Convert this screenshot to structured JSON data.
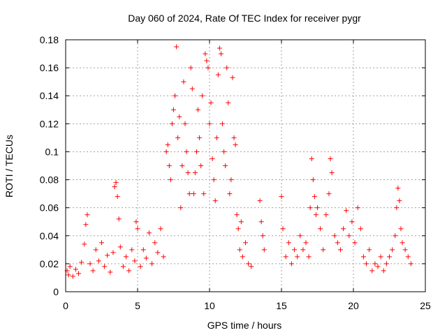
{
  "chart_data": {
    "type": "scatter",
    "title": "Day 060 of 2024, Rate Of TEC Index for receiver pygr",
    "xlabel": "GPS time / hours",
    "ylabel": "ROTI / TECUs",
    "xlim": [
      0,
      25
    ],
    "ylim": [
      0,
      0.18
    ],
    "xticks": [
      0,
      5,
      10,
      15,
      20,
      25
    ],
    "yticks": [
      0,
      0.02,
      0.04,
      0.06,
      0.08,
      0.1,
      0.12,
      0.14,
      0.16,
      0.18
    ],
    "xtick_labels": [
      "0",
      "5",
      "10",
      "15",
      "20",
      "25"
    ],
    "ytick_labels": [
      "0",
      "0.02",
      "0.04",
      "0.06",
      "0.08",
      "0.1",
      "0.12",
      "0.14",
      "0.16",
      "0.18"
    ],
    "grid": true,
    "marker": "+",
    "color": "#ff0000",
    "series": [
      {
        "x": [
          0.1,
          0.2,
          0.3,
          0.5,
          0.7,
          0.9,
          1.1,
          1.3,
          1.4,
          1.5,
          1.7,
          1.9,
          2.1,
          2.3,
          2.5,
          2.7,
          2.9,
          3.1,
          3.3,
          3.4,
          3.5,
          3.6,
          3.7,
          3.8,
          4.0,
          4.2,
          4.4,
          4.6,
          4.8,
          4.9,
          5.0,
          5.2,
          5.4,
          5.6,
          5.8,
          6.0,
          6.2,
          6.4,
          6.6,
          6.8,
          7.0,
          7.1,
          7.2,
          7.3,
          7.4,
          7.5,
          7.6,
          7.7,
          7.8,
          7.9,
          8.0,
          8.1,
          8.2,
          8.3,
          8.4,
          8.5,
          8.6,
          8.7,
          8.8,
          8.9,
          9.0,
          9.1,
          9.2,
          9.3,
          9.4,
          9.5,
          9.6,
          9.7,
          9.8,
          9.9,
          10.0,
          10.1,
          10.2,
          10.3,
          10.4,
          10.5,
          10.6,
          10.7,
          10.8,
          10.9,
          11.0,
          11.1,
          11.2,
          11.3,
          11.4,
          11.5,
          11.6,
          11.7,
          11.8,
          11.9,
          12.0,
          12.1,
          12.2,
          12.3,
          12.5,
          12.7,
          12.9,
          13.5,
          13.6,
          13.7,
          13.8,
          15.0,
          15.1,
          15.3,
          15.5,
          15.7,
          15.9,
          16.1,
          16.3,
          16.5,
          16.7,
          16.9,
          17.0,
          17.1,
          17.2,
          17.3,
          17.4,
          17.5,
          17.7,
          17.9,
          18.1,
          18.3,
          18.4,
          18.5,
          18.7,
          18.9,
          19.1,
          19.3,
          19.5,
          19.7,
          19.9,
          20.1,
          20.3,
          20.5,
          20.7,
          20.9,
          21.1,
          21.3,
          21.5,
          21.7,
          21.9,
          22.1,
          22.3,
          22.5,
          22.7,
          22.9,
          23.0,
          23.1,
          23.2,
          23.3,
          23.4,
          23.6,
          23.8,
          24.0
        ],
        "y": [
          0.015,
          0.012,
          0.018,
          0.011,
          0.016,
          0.013,
          0.021,
          0.034,
          0.048,
          0.055,
          0.02,
          0.015,
          0.03,
          0.022,
          0.035,
          0.018,
          0.026,
          0.014,
          0.028,
          0.075,
          0.078,
          0.068,
          0.052,
          0.032,
          0.018,
          0.025,
          0.015,
          0.03,
          0.022,
          0.05,
          0.045,
          0.018,
          0.03,
          0.024,
          0.042,
          0.02,
          0.035,
          0.028,
          0.045,
          0.025,
          0.1,
          0.105,
          0.09,
          0.08,
          0.12,
          0.13,
          0.14,
          0.175,
          0.11,
          0.125,
          0.06,
          0.09,
          0.15,
          0.12,
          0.1,
          0.085,
          0.07,
          0.16,
          0.145,
          0.07,
          0.085,
          0.1,
          0.13,
          0.11,
          0.09,
          0.14,
          0.07,
          0.17,
          0.165,
          0.16,
          0.12,
          0.135,
          0.095,
          0.08,
          0.065,
          0.11,
          0.155,
          0.174,
          0.17,
          0.12,
          0.1,
          0.09,
          0.16,
          0.135,
          0.07,
          0.08,
          0.153,
          0.11,
          0.105,
          0.055,
          0.045,
          0.03,
          0.05,
          0.025,
          0.035,
          0.02,
          0.018,
          0.065,
          0.05,
          0.04,
          0.03,
          0.068,
          0.045,
          0.025,
          0.035,
          0.02,
          0.03,
          0.025,
          0.04,
          0.03,
          0.035,
          0.025,
          0.06,
          0.095,
          0.08,
          0.068,
          0.055,
          0.06,
          0.045,
          0.03,
          0.055,
          0.07,
          0.095,
          0.085,
          0.04,
          0.035,
          0.03,
          0.045,
          0.058,
          0.04,
          0.05,
          0.035,
          0.06,
          0.045,
          0.025,
          0.02,
          0.03,
          0.015,
          0.02,
          0.018,
          0.025,
          0.015,
          0.02,
          0.025,
          0.03,
          0.04,
          0.06,
          0.074,
          0.065,
          0.045,
          0.035,
          0.03,
          0.025,
          0.02
        ]
      }
    ]
  }
}
